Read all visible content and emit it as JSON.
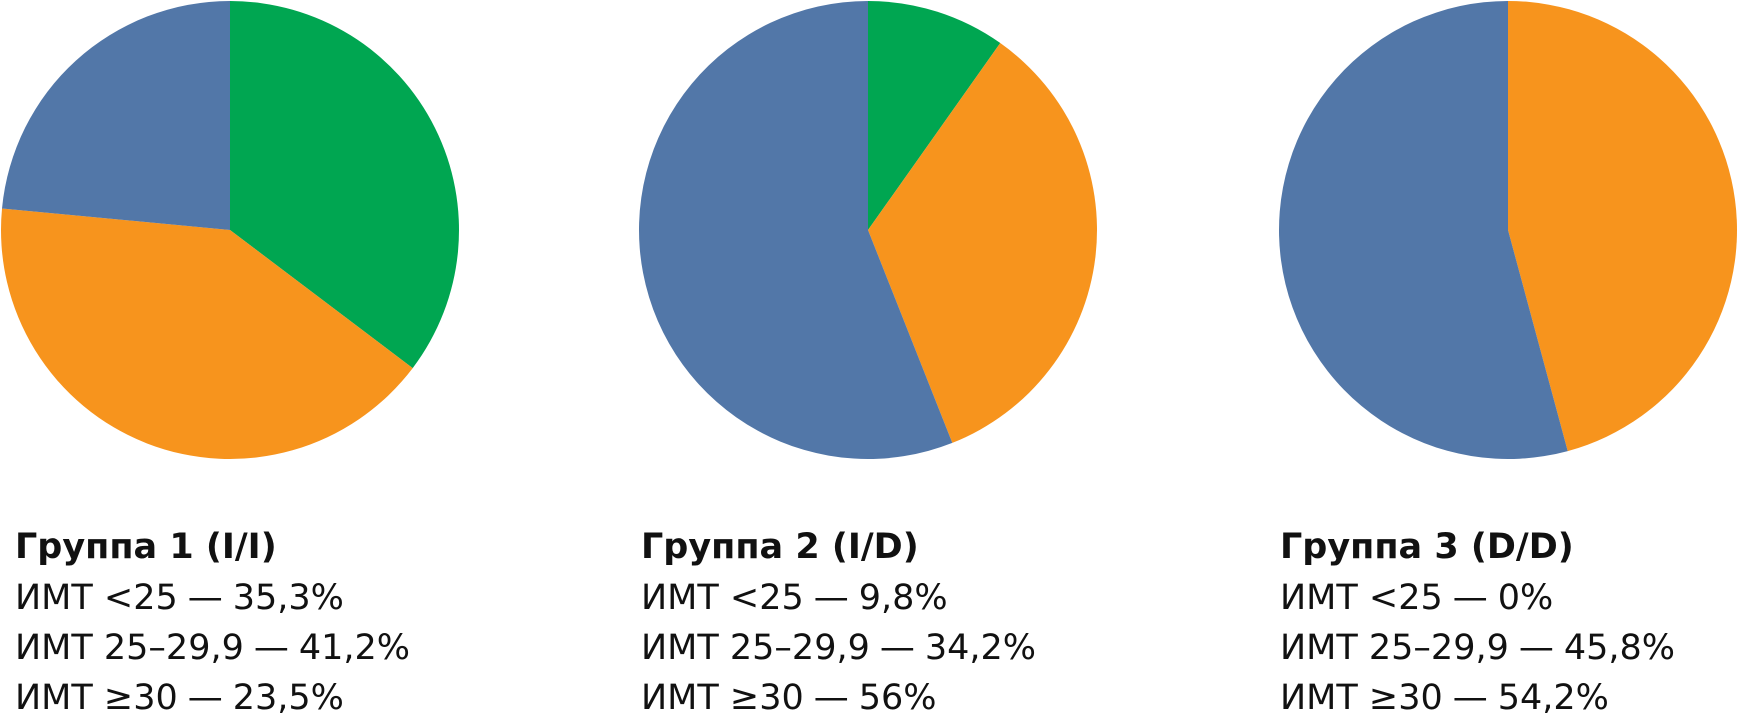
{
  "chart_data": [
    {
      "type": "pie",
      "title": "Группа 1 (I/I)",
      "categories": [
        "ИМТ <25",
        "ИМТ 25–29,9",
        "ИМТ ≥30"
      ],
      "separator": "—",
      "values": [
        35.3,
        41.2,
        23.5
      ],
      "value_labels": [
        "35,3%",
        "41,2%",
        "23,5%"
      ],
      "colors": [
        "#00a651",
        "#f7941d",
        "#5277a8"
      ]
    },
    {
      "type": "pie",
      "title": "Группа 2 (I/D)",
      "categories": [
        "ИМТ <25",
        "ИМТ 25–29,9",
        "ИМТ ≥30"
      ],
      "separator": "—",
      "values": [
        9.8,
        34.2,
        56
      ],
      "value_labels": [
        "9,8%",
        "34,2%",
        "56%"
      ],
      "colors": [
        "#00a651",
        "#f7941d",
        "#5277a8"
      ]
    },
    {
      "type": "pie",
      "title": "Группа 3 (D/D)",
      "categories": [
        "ИМТ <25",
        "ИМТ 25–29,9",
        "ИМТ ≥30"
      ],
      "separator": "—",
      "values": [
        0,
        45.8,
        54.2
      ],
      "value_labels": [
        "0%",
        "45,8%",
        "54,2%"
      ],
      "colors": [
        "#00a651",
        "#f7941d",
        "#5277a8"
      ]
    }
  ]
}
